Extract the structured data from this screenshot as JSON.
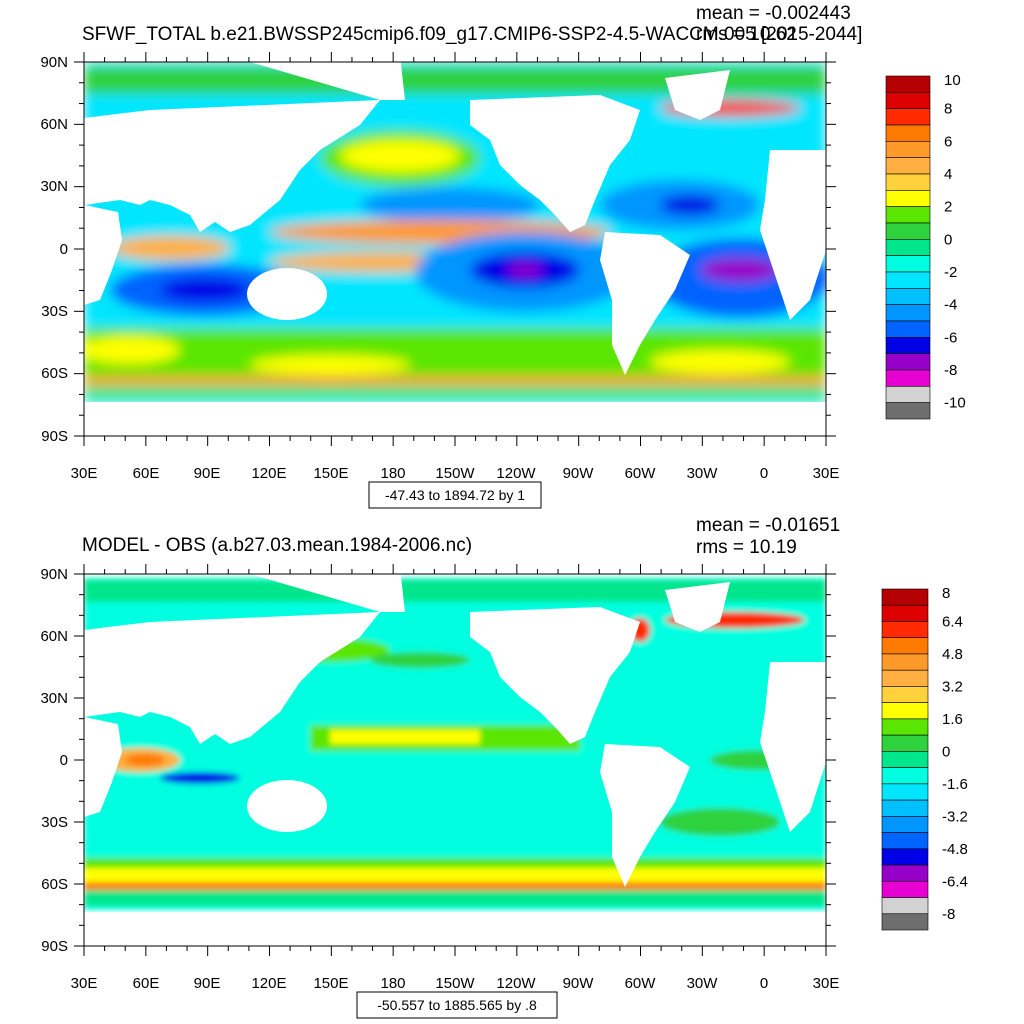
{
  "panels": [
    {
      "id": "top",
      "title": "SFWF_TOTAL b.e21.BWSSP245cmip6.f09_g17.CMIP6-SSP2-4.5-WACCM.005 [2015-2044]",
      "mean_label": "mean = -0.002443",
      "rms_label": "rms = 10.62",
      "range_label": "-47.43 to 1894.72 by 1",
      "lat_ticks": [
        "90N",
        "60N",
        "30N",
        "0",
        "30S",
        "60S",
        "90S"
      ],
      "lon_ticks": [
        "30E",
        "60E",
        "90E",
        "120E",
        "150E",
        "180",
        "150W",
        "120W",
        "90W",
        "60W",
        "30W",
        "0",
        "30E"
      ],
      "colorbar": {
        "levels": [
          "10",
          "8",
          "6",
          "4",
          "2",
          "0",
          "-2",
          "-4",
          "-6",
          "-8",
          "-10"
        ],
        "colors": [
          "#b40000",
          "#dc0000",
          "#ff2a00",
          "#ff7a00",
          "#ff9a2a",
          "#ffb040",
          "#ffd23c",
          "#ffff00",
          "#5ae600",
          "#2dd23c",
          "#00e68c",
          "#00ffe0",
          "#00e6ff",
          "#00c0ff",
          "#0096ff",
          "#0064ff",
          "#0000e6",
          "#9600c8",
          "#e600d2",
          "#d2d2d2",
          "#6e6e6e"
        ]
      }
    },
    {
      "id": "bottom",
      "title": "MODEL - OBS (a.b27.03.mean.1984-2006.nc)",
      "mean_label": "mean = -0.01651",
      "rms_label": "rms = 10.19",
      "range_label": "-50.557 to 1885.565 by .8",
      "lat_ticks": [
        "90N",
        "60N",
        "30N",
        "0",
        "30S",
        "60S",
        "90S"
      ],
      "lon_ticks": [
        "30E",
        "60E",
        "90E",
        "120E",
        "150E",
        "180",
        "150W",
        "120W",
        "90W",
        "60W",
        "30W",
        "0",
        "30E"
      ],
      "colorbar": {
        "levels": [
          "8",
          "6.4",
          "4.8",
          "3.2",
          "1.6",
          "0",
          "-1.6",
          "-3.2",
          "-4.8",
          "-6.4",
          "-8"
        ],
        "colors": [
          "#b40000",
          "#dc0000",
          "#ff2a00",
          "#ff7a00",
          "#ff9a2a",
          "#ffb040",
          "#ffd23c",
          "#ffff00",
          "#5ae600",
          "#2dd23c",
          "#00e68c",
          "#00ffe0",
          "#00e6ff",
          "#00c0ff",
          "#0096ff",
          "#0064ff",
          "#0000e6",
          "#9600c8",
          "#e600d2",
          "#d2d2d2",
          "#6e6e6e"
        ]
      }
    }
  ],
  "map_colors": {
    "ocean_base": "#00e6ff",
    "land": "#ffffff"
  }
}
